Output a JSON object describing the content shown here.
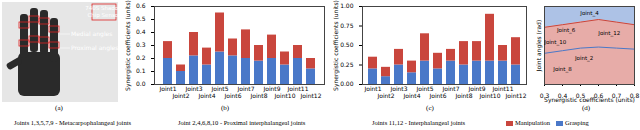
{
  "figure": {
    "sensor_label": [
      "740S Shadow",
      "Chip Sensor"
    ],
    "hand_labels": [
      "Medial angles",
      "Proximal angles"
    ],
    "caption": "(a)",
    "joint_groups": [
      "Joints 1,3,5,7,9 - Metacarpophalangeal joints",
      "Joint 2,4,6,8,10 - Proximal interphalangeal joints",
      "Joints 11,12 - Interphalangeal joints"
    ]
  },
  "chart_data": [
    {
      "type": "bar",
      "stacked": true,
      "caption": "(b)",
      "y_label": "Synergistic coefficients (units)",
      "categories": [
        "Joint1",
        "Joint2",
        "Joint3",
        "Joint4",
        "Joint5",
        "Joint6",
        "Joint7",
        "Joint8",
        "Joint9",
        "Joint10",
        "Joint11",
        "Joint12"
      ],
      "series": [
        {
          "name": "Grasping",
          "color": "#4a78c8",
          "values": [
            0.2,
            0.1,
            0.22,
            0.15,
            0.25,
            0.22,
            0.2,
            0.18,
            0.2,
            0.15,
            0.2,
            0.12
          ]
        },
        {
          "name": "Manipulation",
          "color": "#c9463d",
          "values": [
            0.13,
            0.05,
            0.18,
            0.13,
            0.3,
            0.13,
            0.22,
            0.12,
            0.18,
            0.1,
            0.1,
            0.08
          ]
        }
      ],
      "ylim": [
        0,
        0.6
      ],
      "yticks": [
        {
          "value": 0,
          "label": "0.0"
        },
        0.1,
        0.2,
        0.3,
        0.4,
        0.5,
        0.6
      ],
      "legend": "bottom"
    },
    {
      "type": "bar",
      "stacked": true,
      "caption": "(c)",
      "y_label": "Synergistic coefficients (units)",
      "categories": [
        "Joint1",
        "Joint2",
        "Joint3",
        "Joint4",
        "Joint5",
        "Joint6",
        "Joint7",
        "Joint8",
        "Joint9",
        "Joint10",
        "Joint11",
        "Joint12"
      ],
      "series": [
        {
          "name": "Grasping",
          "color": "#4a78c8",
          "values": [
            0.2,
            0.1,
            0.25,
            0.15,
            0.3,
            0.2,
            0.3,
            0.25,
            0.3,
            0.3,
            0.3,
            0.25
          ]
        },
        {
          "name": "Manipulation",
          "color": "#c9463d",
          "values": [
            0.15,
            0.12,
            0.2,
            0.15,
            0.35,
            0.2,
            0.15,
            0.3,
            0.25,
            0.6,
            0.2,
            0.35
          ]
        }
      ],
      "ylim": [
        0,
        1
      ],
      "yticks": [
        {
          "value": 0,
          "label": "0.00"
        },
        {
          "value": 0.25,
          "label": "0.25"
        },
        {
          "value": 0.5,
          "label": "0.50"
        },
        {
          "value": 0.75,
          "label": "0.75"
        },
        {
          "value": 1,
          "label": "1.00"
        }
      ]
    },
    {
      "type": "line",
      "caption": "(d)",
      "x_label": "Synergistic coefficients (units)",
      "y_label": "Joint angles (rad)",
      "x": [
        0.3,
        0.4,
        0.5,
        0.6,
        0.7,
        0.8
      ],
      "series": [
        {
          "name": "Manipulation",
          "color": "#c9463d",
          "values": [
            1.1,
            1.15,
            1.2,
            1.25,
            1.2,
            1.15
          ]
        },
        {
          "name": "Grasping",
          "color": "#4a78c8",
          "values": [
            0.6,
            0.65,
            0.7,
            0.72,
            0.7,
            0.68
          ]
        }
      ],
      "xlim": [
        0.3,
        0.8
      ],
      "xticks": [
        0.3,
        0.4,
        0.5,
        0.6,
        0.7,
        0.8
      ],
      "ylim": [
        0,
        1.5
      ],
      "tick_labels": "x",
      "annotations": [
        {
          "text": "Joint_4",
          "x": 0.55,
          "y": 1.38
        },
        {
          "text": "Joint_6",
          "x": 0.42,
          "y": 1.05
        },
        {
          "text": "Joint_12",
          "x": 0.66,
          "y": 0.98
        },
        {
          "text": "Joint_10",
          "x": 0.36,
          "y": 0.82
        },
        {
          "text": "Joint_2",
          "x": 0.52,
          "y": 0.5
        },
        {
          "text": "Joint_8",
          "x": 0.4,
          "y": 0.3
        }
      ]
    }
  ]
}
